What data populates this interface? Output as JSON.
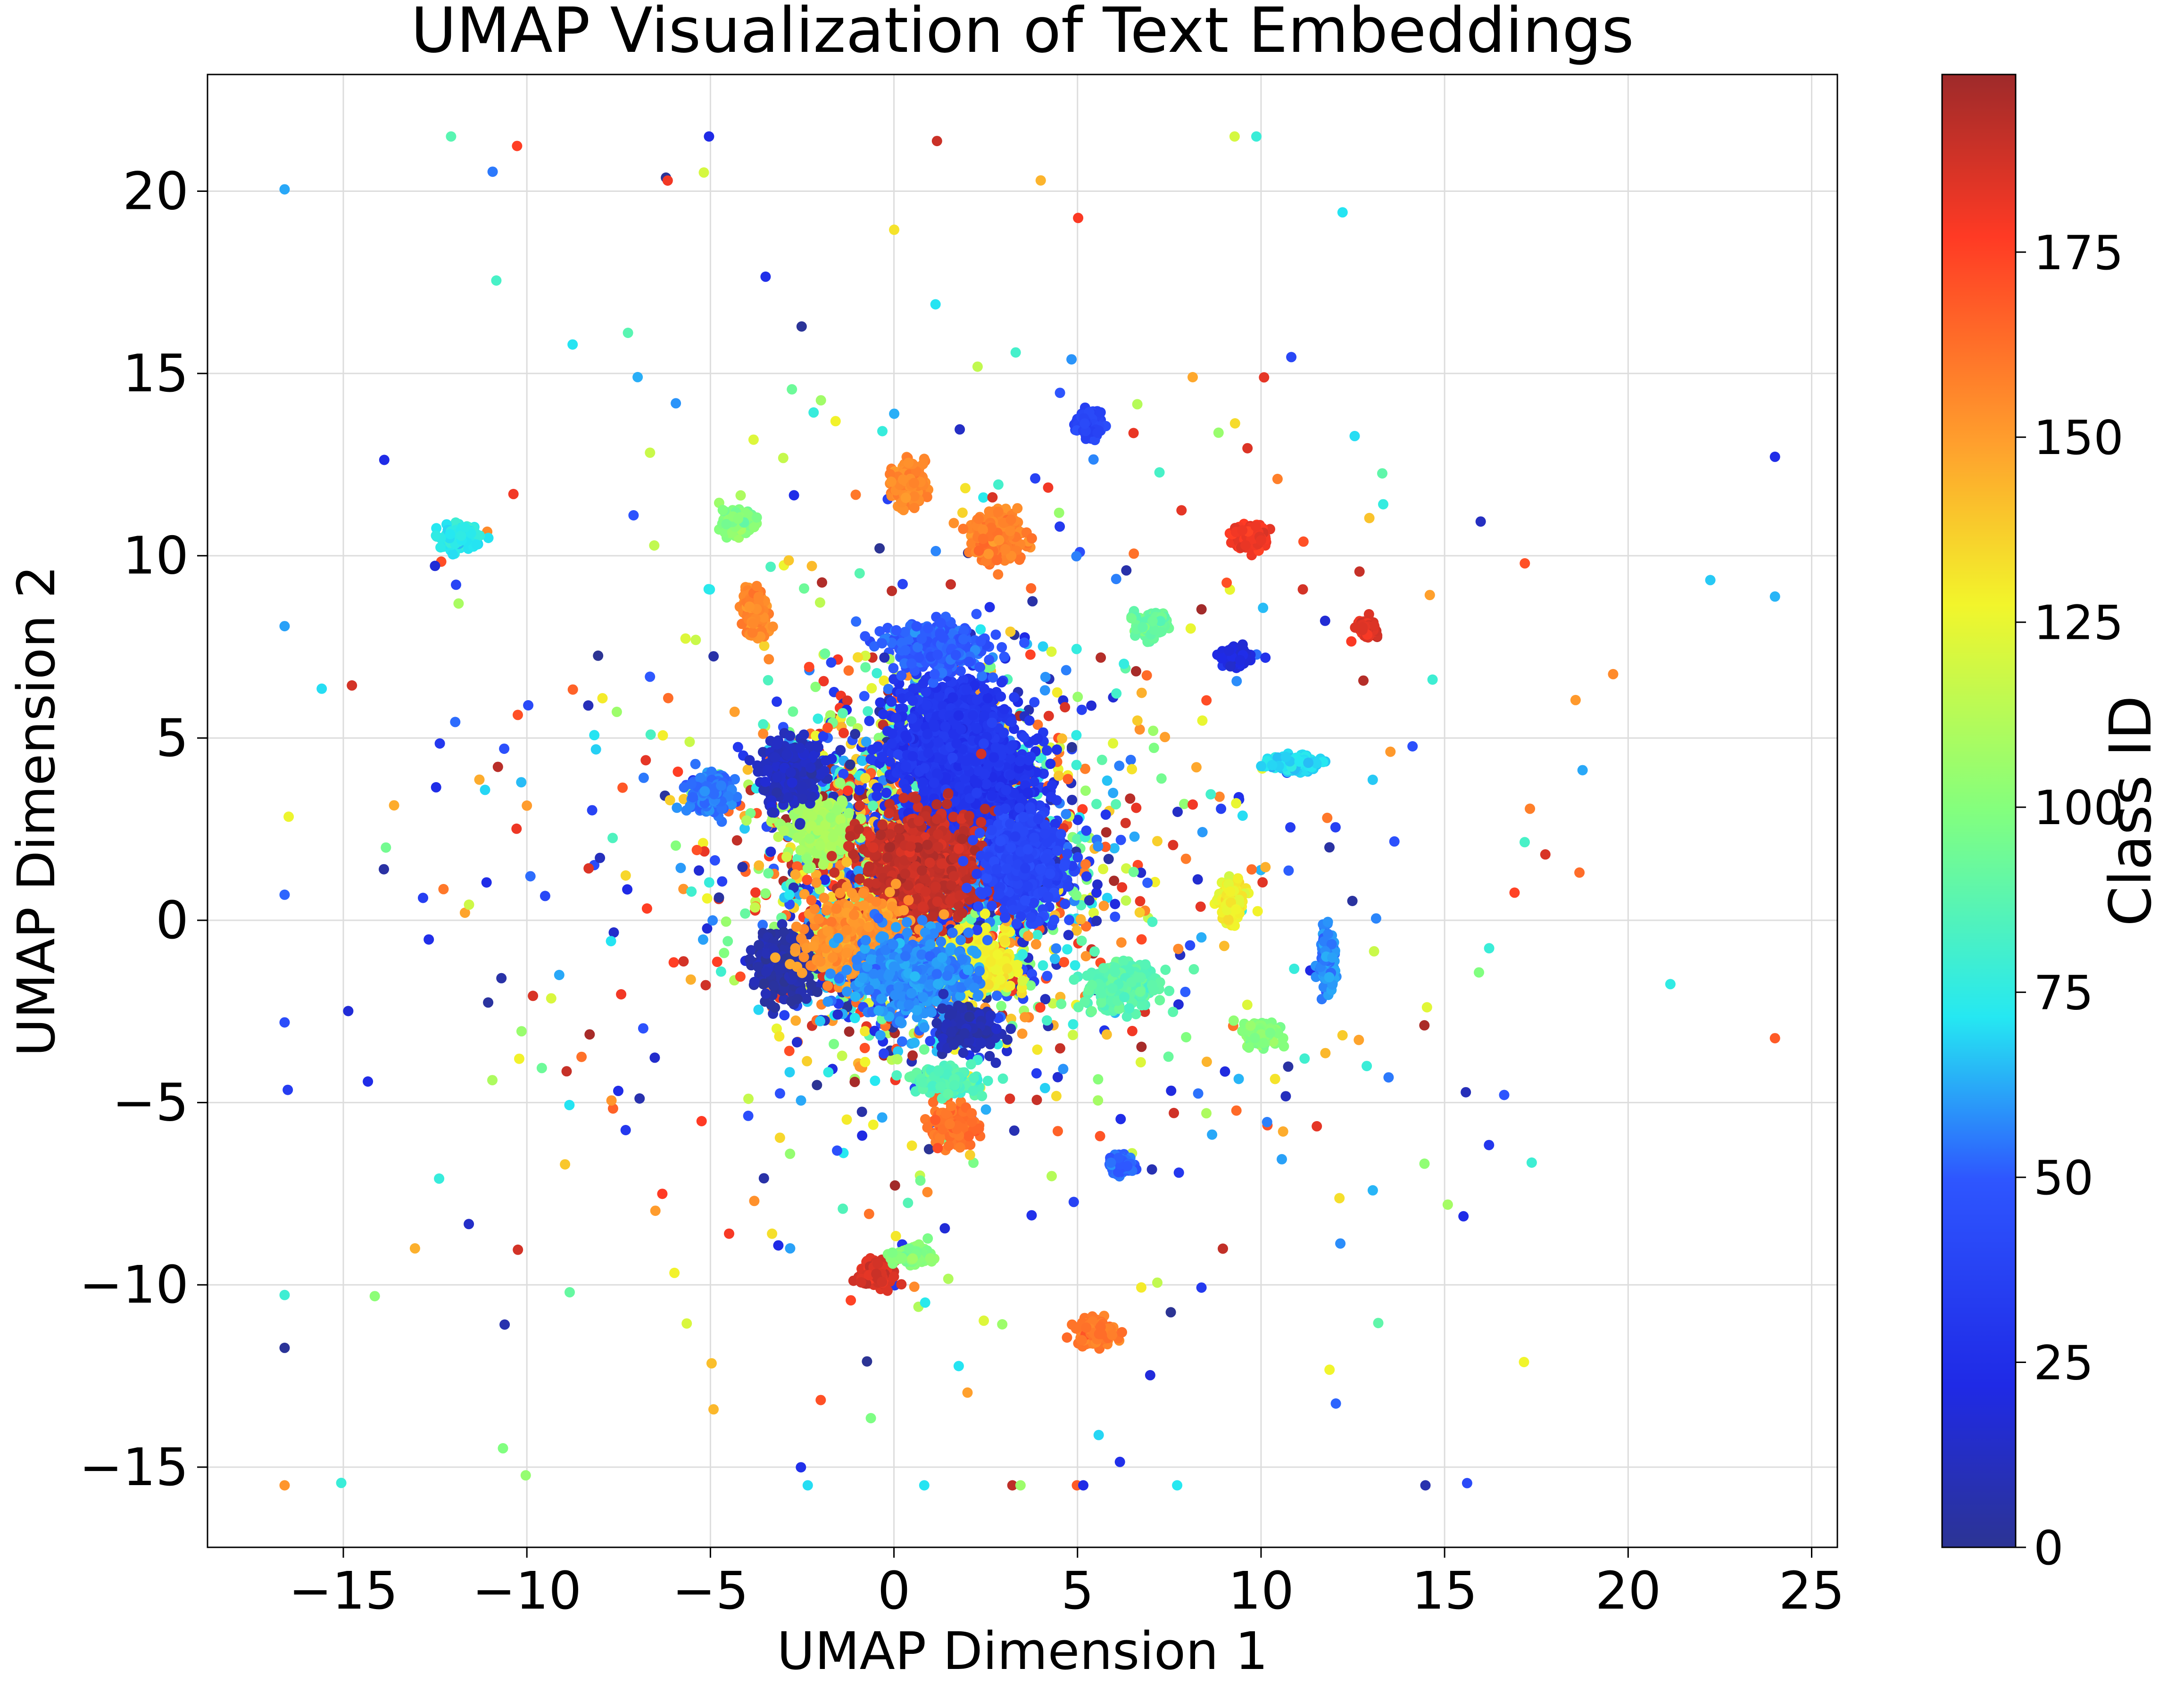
{
  "chart_data": {
    "type": "scatter",
    "title": "UMAP Visualization of Text Embeddings",
    "xlabel": "UMAP Dimension 1",
    "ylabel": "UMAP Dimension 2",
    "xlim": [
      -18.7,
      25.7
    ],
    "ylim": [
      -17.2,
      23.2
    ],
    "xticks": [
      -15,
      -10,
      -5,
      0,
      5,
      10,
      15,
      20,
      25
    ],
    "xtick_labels": [
      "−15",
      "−10",
      "−5",
      "0",
      "5",
      "10",
      "15",
      "20",
      "25"
    ],
    "yticks": [
      -15,
      -10,
      -5,
      0,
      5,
      10,
      15,
      20
    ],
    "ytick_labels": [
      "−15",
      "−10",
      "−5",
      "0",
      "5",
      "10",
      "15",
      "20"
    ],
    "grid": true,
    "colormap": "jet",
    "colorbar": {
      "label": "Class ID",
      "range": [
        0,
        199
      ],
      "ticks": [
        0,
        25,
        50,
        75,
        100,
        125,
        150,
        175
      ],
      "tick_labels": [
        "0",
        "25",
        "50",
        "75",
        "100",
        "125",
        "150",
        "175"
      ]
    },
    "clusters": [
      {
        "x": 2.0,
        "y": 3.8,
        "class_id": 28,
        "spread_x": 1.6,
        "spread_y": 1.8
      },
      {
        "x": 1.5,
        "y": 5.2,
        "class_id": 30,
        "spread_x": 1.3,
        "spread_y": 1.2
      },
      {
        "x": -2.0,
        "y": 2.5,
        "class_id": 108,
        "spread_x": 0.8,
        "spread_y": 0.7
      },
      {
        "x": 2.3,
        "y": -1.2,
        "class_id": 128,
        "spread_x": 0.9,
        "spread_y": 0.7
      },
      {
        "x": 0.8,
        "y": 1.5,
        "class_id": 190,
        "spread_x": 1.5,
        "spread_y": 1.3
      },
      {
        "x": -3.0,
        "y": -1.2,
        "class_id": 5,
        "spread_x": 0.7,
        "spread_y": 0.8
      },
      {
        "x": 6.2,
        "y": -1.8,
        "class_id": 88,
        "spread_x": 0.9,
        "spread_y": 0.6
      },
      {
        "x": 1.2,
        "y": 7.5,
        "class_id": 50,
        "spread_x": 1.2,
        "spread_y": 0.6
      },
      {
        "x": 2.8,
        "y": 10.5,
        "class_id": 158,
        "spread_x": 0.7,
        "spread_y": 0.6
      },
      {
        "x": -1.0,
        "y": -0.5,
        "class_id": 152,
        "spread_x": 1.3,
        "spread_y": 1.0
      },
      {
        "x": 3.5,
        "y": 1.5,
        "class_id": 40,
        "spread_x": 1.0,
        "spread_y": 1.2
      },
      {
        "x": 0.5,
        "y": -1.5,
        "class_id": 58,
        "spread_x": 1.5,
        "spread_y": 1.0
      },
      {
        "x": 2.0,
        "y": -3.0,
        "class_id": 8,
        "spread_x": 0.6,
        "spread_y": 0.5
      },
      {
        "x": -2.8,
        "y": 4.0,
        "class_id": 12,
        "spread_x": 0.7,
        "spread_y": 0.8
      },
      {
        "x": 1.6,
        "y": -5.6,
        "class_id": 162,
        "spread_x": 0.5,
        "spread_y": 0.5
      },
      {
        "x": 9.2,
        "y": 0.5,
        "class_id": 128,
        "spread_x": 0.3,
        "spread_y": 0.5
      },
      {
        "x": 11.8,
        "y": -1.1,
        "class_id": 58,
        "spread_x": 0.2,
        "spread_y": 0.7
      },
      {
        "x": 10.9,
        "y": 4.3,
        "class_id": 70,
        "spread_x": 0.6,
        "spread_y": 0.2
      },
      {
        "x": 9.7,
        "y": 10.5,
        "class_id": 180,
        "spread_x": 0.4,
        "spread_y": 0.3
      },
      {
        "x": 5.3,
        "y": 13.6,
        "class_id": 38,
        "spread_x": 0.3,
        "spread_y": 0.3
      },
      {
        "x": -4.2,
        "y": 10.9,
        "class_id": 100,
        "spread_x": 0.4,
        "spread_y": 0.3
      },
      {
        "x": -11.8,
        "y": 10.5,
        "class_id": 74,
        "spread_x": 0.5,
        "spread_y": 0.3
      },
      {
        "x": 9.3,
        "y": 7.2,
        "class_id": 20,
        "spread_x": 0.3,
        "spread_y": 0.2
      },
      {
        "x": 12.9,
        "y": 8.0,
        "class_id": 185,
        "spread_x": 0.2,
        "spread_y": 0.2
      },
      {
        "x": 6.2,
        "y": -6.7,
        "class_id": 52,
        "spread_x": 0.3,
        "spread_y": 0.2
      },
      {
        "x": 5.5,
        "y": -11.3,
        "class_id": 160,
        "spread_x": 0.5,
        "spread_y": 0.3
      },
      {
        "x": -0.5,
        "y": -9.7,
        "class_id": 185,
        "spread_x": 0.4,
        "spread_y": 0.3
      },
      {
        "x": 0.5,
        "y": -9.2,
        "class_id": 100,
        "spread_x": 0.4,
        "spread_y": 0.2
      },
      {
        "x": 7.0,
        "y": 8.1,
        "class_id": 92,
        "spread_x": 0.4,
        "spread_y": 0.3
      },
      {
        "x": 0.4,
        "y": 12.0,
        "class_id": 155,
        "spread_x": 0.4,
        "spread_y": 0.5
      },
      {
        "x": -3.8,
        "y": 8.5,
        "class_id": 155,
        "spread_x": 0.3,
        "spread_y": 0.6
      },
      {
        "x": -5.0,
        "y": 3.5,
        "class_id": 55,
        "spread_x": 0.5,
        "spread_y": 0.5
      },
      {
        "x": 10.0,
        "y": -3.1,
        "class_id": 100,
        "spread_x": 0.4,
        "spread_y": 0.3
      },
      {
        "x": 1.4,
        "y": -4.4,
        "class_id": 85,
        "spread_x": 0.8,
        "spread_y": 0.3
      }
    ],
    "scattered_points": {
      "count": 700,
      "x_range": [
        -16.6,
        24.0
      ],
      "y_range": [
        -15.5,
        21.5
      ],
      "class_range": [
        0,
        199
      ]
    }
  }
}
